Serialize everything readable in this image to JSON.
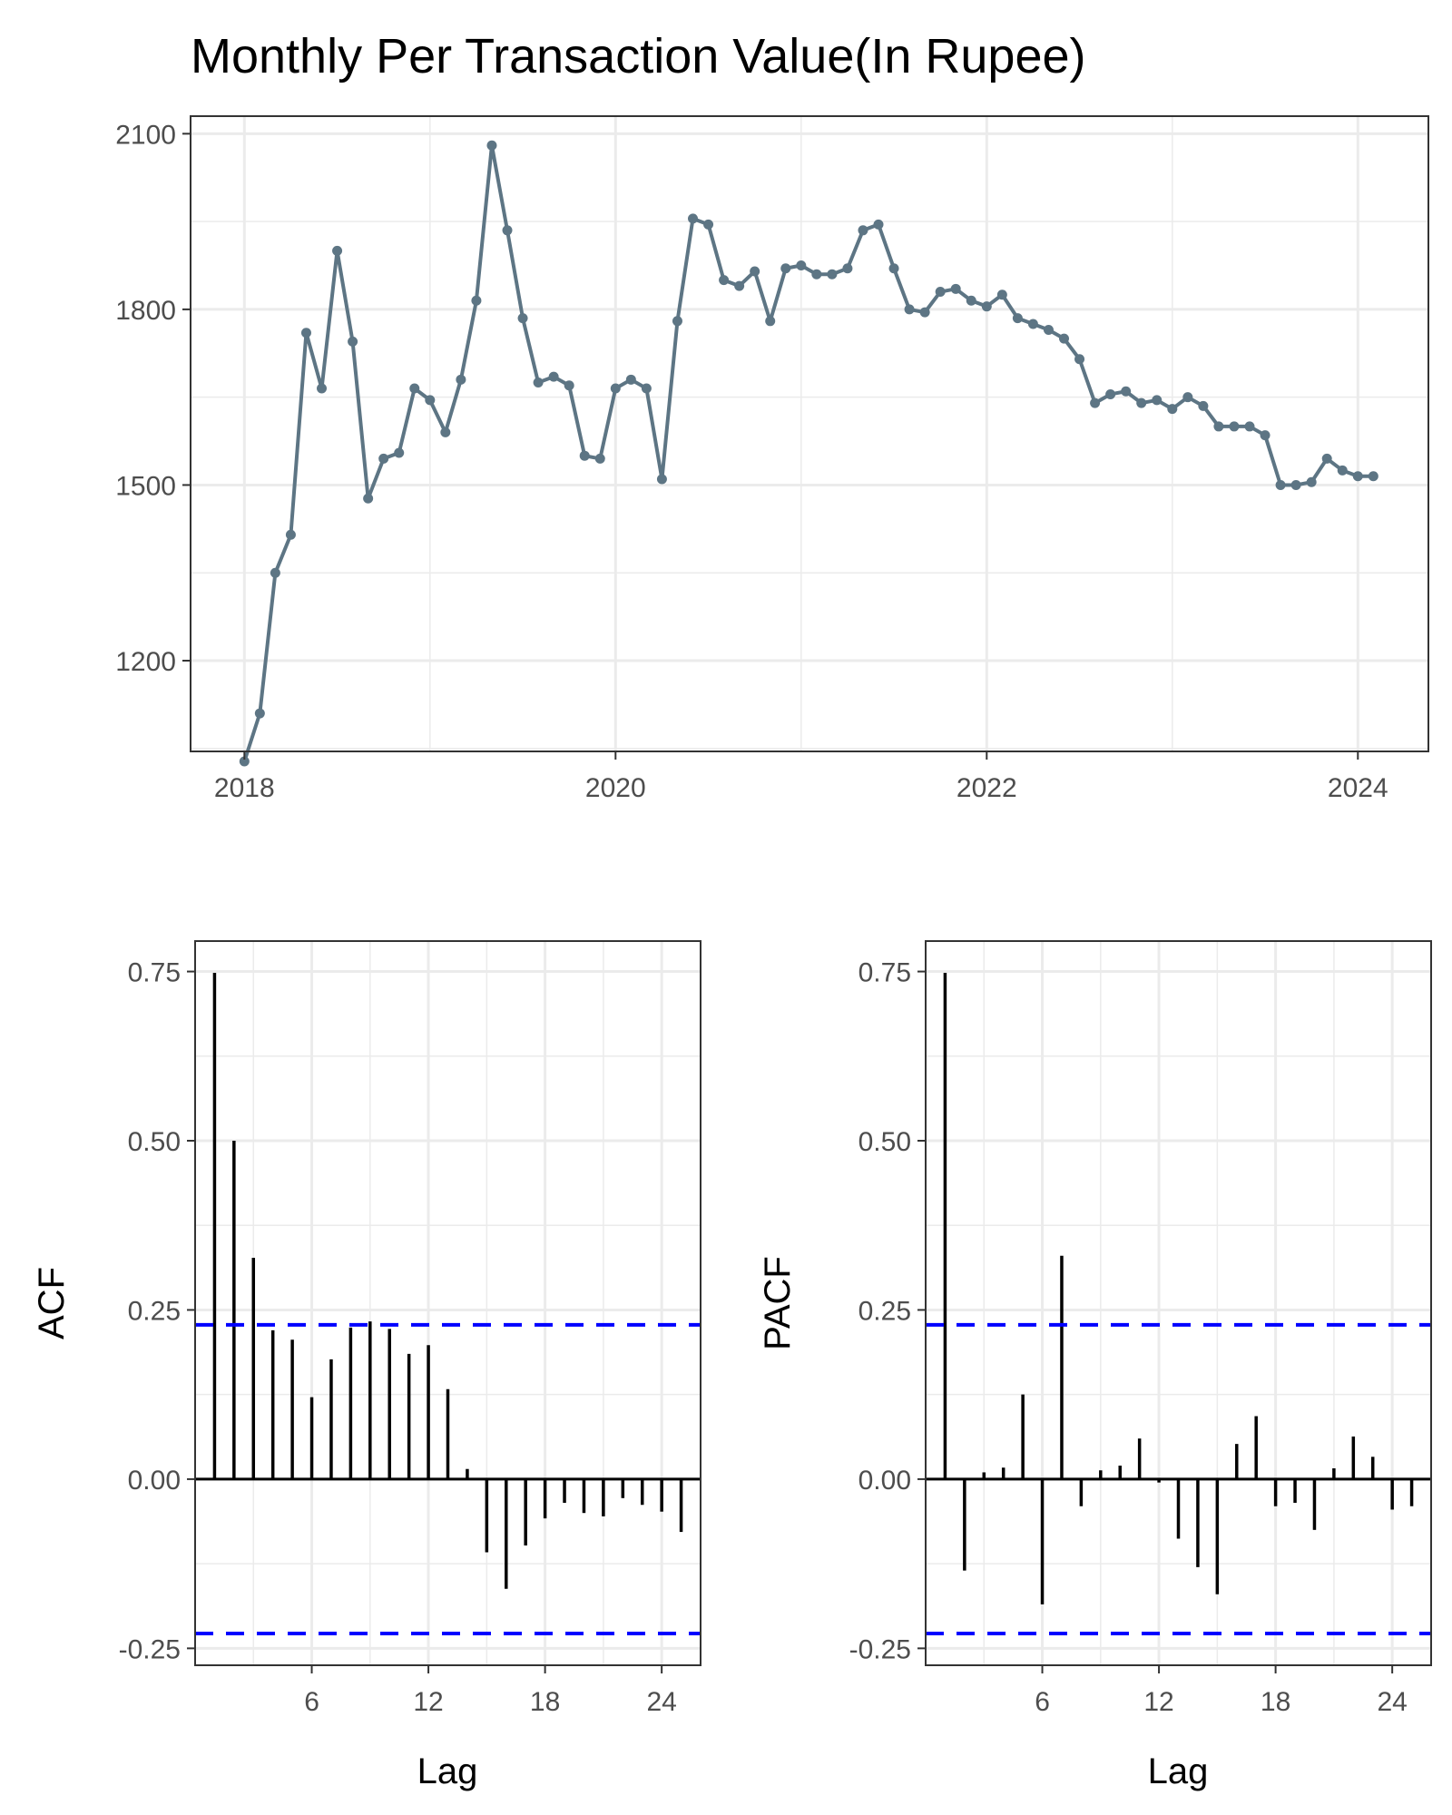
{
  "chart_data": [
    {
      "type": "line",
      "title": "Monthly Per Transaction Value(In Rupee)",
      "xlabel": "",
      "ylabel": "",
      "x_ticks": [
        "2018",
        "2020",
        "2022",
        "2024"
      ],
      "y_ticks": [
        "1200",
        "1500",
        "1800",
        "2100"
      ],
      "xlim": [
        2017.71,
        2024.38
      ],
      "ylim": [
        1045,
        2130
      ],
      "grid": true,
      "line_color": "#5d7584",
      "x_start": "2018-01",
      "x_step": "1 month",
      "values": [
        1028,
        1110,
        1350,
        1415,
        1760,
        1665,
        1900,
        1745,
        1477,
        1545,
        1555,
        1665,
        1645,
        1590,
        1680,
        1815,
        2080,
        1935,
        1785,
        1675,
        1685,
        1670,
        1550,
        1545,
        1665,
        1680,
        1665,
        1510,
        1780,
        1955,
        1945,
        1850,
        1840,
        1865,
        1780,
        1870,
        1875,
        1860,
        1860,
        1870,
        1935,
        1945,
        1870,
        1800,
        1795,
        1830,
        1835,
        1815,
        1805,
        1825,
        1785,
        1775,
        1765,
        1750,
        1715,
        1640,
        1655,
        1660,
        1640,
        1645,
        1630,
        1650,
        1635,
        1600,
        1600,
        1600,
        1585,
        1500,
        1500,
        1505,
        1545,
        1525,
        1515,
        1515
      ]
    },
    {
      "type": "bar",
      "xlabel": "Lag",
      "ylabel": "ACF",
      "x_ticks": [
        "6",
        "12",
        "18",
        "24"
      ],
      "y_ticks": [
        "-0.25",
        "0.00",
        "0.25",
        "0.50",
        "0.75"
      ],
      "xlim": [
        0,
        26
      ],
      "ylim": [
        -0.275,
        0.795
      ],
      "grid": true,
      "confidence_bound": 0.228,
      "confidence_color": "#0000ff",
      "lags": [
        1,
        2,
        3,
        4,
        5,
        6,
        7,
        8,
        9,
        10,
        11,
        12,
        13,
        14,
        15,
        16,
        17,
        18,
        19,
        20,
        21,
        22,
        23,
        24,
        25
      ],
      "values": [
        0.748,
        0.5,
        0.327,
        0.22,
        0.206,
        0.121,
        0.177,
        0.224,
        0.233,
        0.222,
        0.185,
        0.198,
        0.133,
        0.015,
        -0.108,
        -0.162,
        -0.098,
        -0.058,
        -0.035,
        -0.05,
        -0.055,
        -0.028,
        -0.038,
        -0.048,
        -0.078
      ]
    },
    {
      "type": "bar",
      "xlabel": "Lag",
      "ylabel": "PACF",
      "x_ticks": [
        "6",
        "12",
        "18",
        "24"
      ],
      "y_ticks": [
        "-0.25",
        "0.00",
        "0.25",
        "0.50",
        "0.75"
      ],
      "xlim": [
        0,
        26
      ],
      "ylim": [
        -0.275,
        0.795
      ],
      "grid": true,
      "confidence_bound": 0.228,
      "confidence_color": "#0000ff",
      "lags": [
        1,
        2,
        3,
        4,
        5,
        6,
        7,
        8,
        9,
        10,
        11,
        12,
        13,
        14,
        15,
        16,
        17,
        18,
        19,
        20,
        21,
        22,
        23,
        24,
        25
      ],
      "values": [
        0.748,
        -0.135,
        0.01,
        0.017,
        0.125,
        -0.185,
        0.33,
        -0.04,
        0.013,
        0.02,
        0.06,
        -0.005,
        -0.088,
        -0.13,
        -0.17,
        0.052,
        0.093,
        -0.04,
        -0.035,
        -0.075,
        0.016,
        0.063,
        0.033,
        -0.045,
        -0.04
      ]
    }
  ]
}
